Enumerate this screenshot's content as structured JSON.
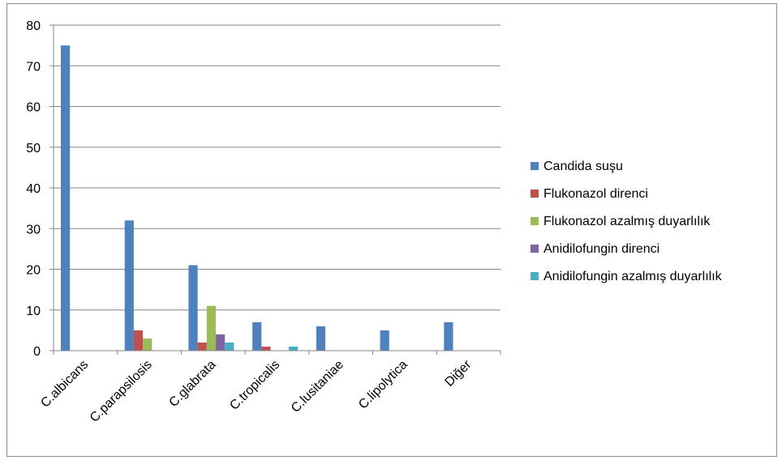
{
  "chart_data": {
    "type": "bar",
    "title": "",
    "xlabel": "",
    "ylabel": "",
    "ylim": [
      0,
      80
    ],
    "yticks": [
      0,
      10,
      20,
      30,
      40,
      50,
      60,
      70,
      80
    ],
    "categories": [
      "C.albicans",
      "C.parapsilosis",
      "C.glabrata",
      "C.tropicalis",
      "C.lusitaniae",
      "C.lipolytica",
      "Diğer"
    ],
    "series": [
      {
        "name": "Candida suşu",
        "color": "#4f81bd",
        "values": [
          75,
          32,
          21,
          7,
          6,
          5,
          7
        ]
      },
      {
        "name": "Flukonazol direnci",
        "color": "#c0504d",
        "values": [
          0,
          5,
          2,
          1,
          0,
          0,
          0
        ]
      },
      {
        "name": "Flukonazol azalmış duyarlılık",
        "color": "#9bbb59",
        "values": [
          0,
          3,
          11,
          0,
          0,
          0,
          0
        ]
      },
      {
        "name": "Anidilofungin direnci",
        "color": "#8064a2",
        "values": [
          0,
          0,
          4,
          0,
          0,
          0,
          0
        ]
      },
      {
        "name": "Anidilofungin azalmış duyarlılık",
        "color": "#4bacc6",
        "values": [
          0,
          0,
          2,
          1,
          0,
          0,
          0
        ]
      }
    ],
    "grid": true,
    "legend_position": "right"
  }
}
